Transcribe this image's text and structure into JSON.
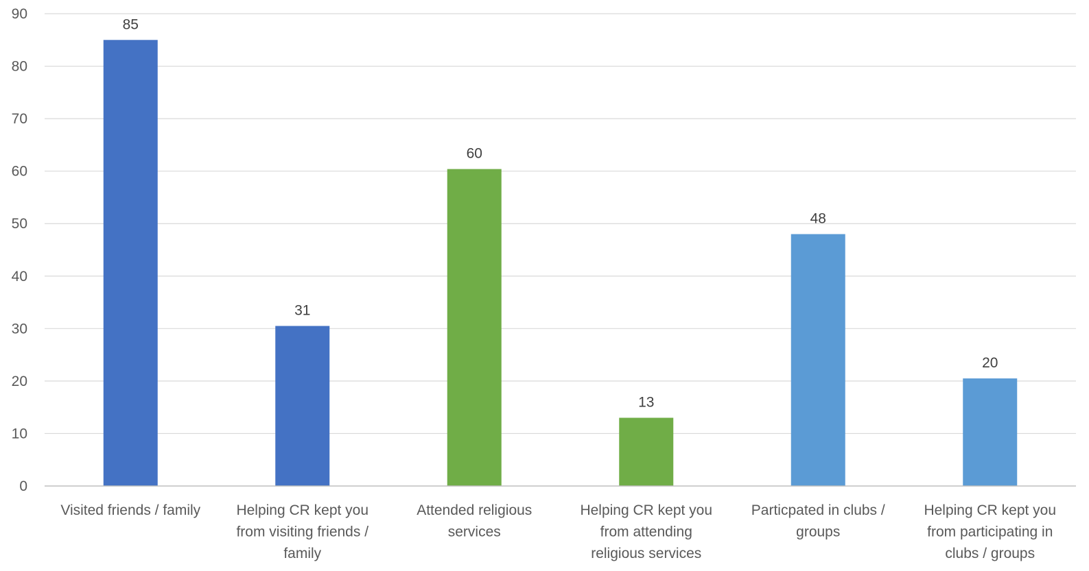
{
  "chart_data": {
    "type": "bar",
    "title": "",
    "xlabel": "",
    "ylabel": "",
    "ylim": [
      0,
      90
    ],
    "yticks": [
      0,
      10,
      20,
      30,
      40,
      50,
      60,
      70,
      80,
      90
    ],
    "grid": true,
    "legend": "none",
    "categories": [
      [
        "Visited friends / family"
      ],
      [
        "Helping CR kept you",
        "from visiting friends /",
        "family"
      ],
      [
        "Attended religious",
        "services"
      ],
      [
        "Helping CR kept you",
        "from attending",
        "religious services"
      ],
      [
        "Particpated in clubs /",
        "groups"
      ],
      [
        "Helping CR kept you",
        "from participating in",
        "clubs / groups"
      ]
    ],
    "values": [
      85,
      30.5,
      60.4,
      13,
      48,
      20.5
    ],
    "data_labels": [
      "85",
      "31",
      "60",
      "13",
      "48",
      "20"
    ],
    "colors": [
      "#4472c4",
      "#4472c4",
      "#70ad47",
      "#70ad47",
      "#5b9bd5",
      "#5b9bd5"
    ]
  }
}
